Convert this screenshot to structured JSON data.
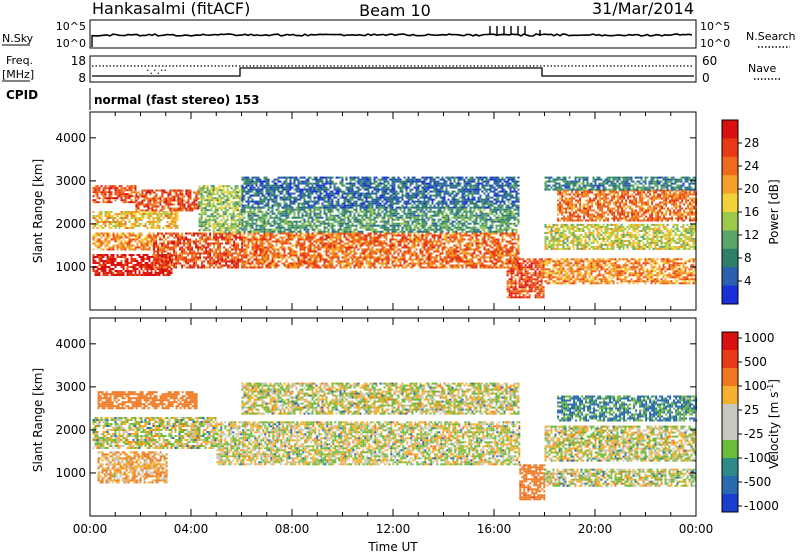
{
  "header": {
    "station": "Hankasalmi (fitACF)",
    "beam": "Beam 10",
    "date": "31/Mar/2014"
  },
  "status_panel": {
    "nsky_label": "N.Sky",
    "nsearch_label": "N.Search",
    "noise_ticks": [
      "10^5",
      "10^0"
    ],
    "noise_ticks_right": [
      "10^5",
      "10^0"
    ],
    "freq_label": "Freq.",
    "freq_unit": "[MHz]",
    "freq_ticks": [
      "18",
      "8"
    ],
    "nave_label": "Nave",
    "nave_ticks": [
      "60",
      "0"
    ],
    "cpid_label": "CPID",
    "cpid_value": "normal (fast stereo) 153"
  },
  "chart_data": [
    {
      "type": "heatmap",
      "name": "power",
      "title": "",
      "xlabel": "",
      "ylabel": "Slant Range [km]",
      "x_range_hours": [
        0,
        24
      ],
      "ylim": [
        0,
        4600
      ],
      "yticks": [
        1000,
        2000,
        3000,
        4000
      ],
      "grid": false,
      "colorbar": {
        "label": "Power [dB]",
        "range": [
          0,
          32
        ],
        "ticks": [
          4,
          8,
          12,
          16,
          20,
          24,
          28
        ],
        "colors": [
          "#1a2fd8",
          "#2b5fb0",
          "#2f7f6a",
          "#5aa56a",
          "#9cc94a",
          "#f2d23a",
          "#f5a02a",
          "#f06a1e",
          "#e83a14",
          "#d81010"
        ]
      },
      "bands": [
        {
          "x0": 0.1,
          "x1": 3.2,
          "y0": 800,
          "y1": 1300,
          "level": 30
        },
        {
          "x0": 0.1,
          "x1": 2.5,
          "y0": 1400,
          "y1": 1800,
          "level": 22
        },
        {
          "x0": 0.1,
          "x1": 1.8,
          "y0": 2500,
          "y1": 2900,
          "level": 26
        },
        {
          "x0": 1.8,
          "x1": 4.3,
          "y0": 2300,
          "y1": 2800,
          "level": 26
        },
        {
          "x0": 0.1,
          "x1": 3.5,
          "y0": 1900,
          "y1": 2300,
          "level": 18
        },
        {
          "x0": 2.5,
          "x1": 6.0,
          "y0": 1000,
          "y1": 1800,
          "level": 26
        },
        {
          "x0": 4.3,
          "x1": 6.0,
          "y0": 1800,
          "y1": 2900,
          "level": 14
        },
        {
          "x0": 6.0,
          "x1": 17.0,
          "y0": 1000,
          "y1": 1800,
          "level": 24
        },
        {
          "x0": 6.0,
          "x1": 17.0,
          "y0": 1800,
          "y1": 2400,
          "level": 10
        },
        {
          "x0": 6.0,
          "x1": 17.0,
          "y0": 2400,
          "y1": 3100,
          "level": 6
        },
        {
          "x0": 16.5,
          "x1": 18.0,
          "y0": 300,
          "y1": 1200,
          "level": 26
        },
        {
          "x0": 18.0,
          "x1": 24.0,
          "y0": 600,
          "y1": 1200,
          "level": 22
        },
        {
          "x0": 18.0,
          "x1": 24.0,
          "y0": 1400,
          "y1": 2000,
          "level": 16
        },
        {
          "x0": 18.5,
          "x1": 24.0,
          "y0": 2100,
          "y1": 2800,
          "level": 24
        },
        {
          "x0": 18.0,
          "x1": 24.0,
          "y0": 2800,
          "y1": 3100,
          "level": 8
        }
      ]
    },
    {
      "type": "heatmap",
      "name": "velocity",
      "title": "",
      "xlabel": "Time UT",
      "ylabel": "Slant Range [km]",
      "x_range_hours": [
        0,
        24
      ],
      "xticks": [
        "00:00",
        "04:00",
        "08:00",
        "12:00",
        "16:00",
        "20:00",
        "00:00"
      ],
      "ylim": [
        0,
        4600
      ],
      "yticks": [
        1000,
        2000,
        3000,
        4000
      ],
      "grid": false,
      "colorbar": {
        "label": "Velocity [m s",
        "label_superscript": "-1",
        "label_close": "]",
        "ticks": [
          "1000",
          "500",
          "100",
          "25",
          "-25",
          "-100",
          "-500",
          "-1000"
        ],
        "colors": [
          "#1a3fd0",
          "#2a6ab0",
          "#2f8a8a",
          "#6cbb3a",
          "#c8c8c0",
          "#c8c8c0",
          "#f5b030",
          "#f07820",
          "#e83a14",
          "#d81010"
        ]
      },
      "bands": [
        {
          "x0": 0.1,
          "x1": 5.0,
          "y0": 1600,
          "y1": 2300,
          "vel": 0
        },
        {
          "x0": 5.0,
          "x1": 17.0,
          "y0": 1200,
          "y1": 2200,
          "vel": 0
        },
        {
          "x0": 0.3,
          "x1": 4.2,
          "y0": 2500,
          "y1": 2900,
          "vel": -300
        },
        {
          "x0": 0.3,
          "x1": 3.0,
          "y0": 800,
          "y1": 1500,
          "vel": -80
        },
        {
          "x0": 17.0,
          "x1": 18.0,
          "y0": 400,
          "y1": 1200,
          "vel": -400
        },
        {
          "x0": 18.0,
          "x1": 24.0,
          "y0": 700,
          "y1": 1100,
          "vel": 0
        },
        {
          "x0": 18.0,
          "x1": 24.0,
          "y0": 1300,
          "y1": 2100,
          "vel": 0
        },
        {
          "x0": 18.5,
          "x1": 24.0,
          "y0": 2200,
          "y1": 2800,
          "vel": 120
        },
        {
          "x0": 6.0,
          "x1": 17.0,
          "y0": 2400,
          "y1": 3100,
          "vel": 0
        }
      ]
    }
  ]
}
